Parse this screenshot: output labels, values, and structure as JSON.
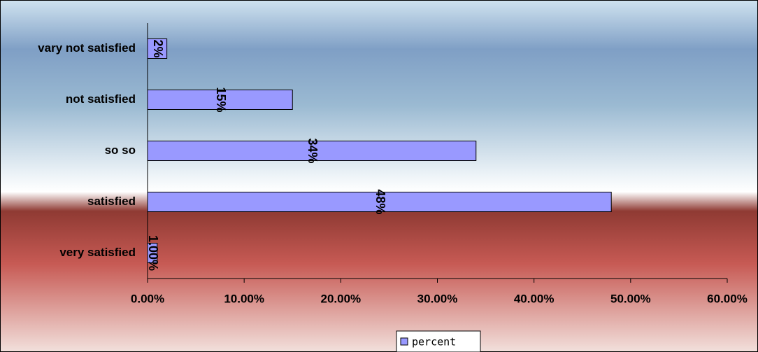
{
  "chart_data": {
    "type": "bar",
    "orientation": "horizontal",
    "categories": [
      "vary not satisfied",
      "not satisfied",
      "so so",
      "satisfied",
      "very satisfied"
    ],
    "series": [
      {
        "name": "percent",
        "color": "#9999ff",
        "values": [
          2,
          15,
          34,
          48,
          1
        ],
        "value_labels": [
          "2%",
          "15%",
          "34%",
          "48%",
          "1.00%"
        ]
      }
    ],
    "xlim": [
      0,
      60
    ],
    "xticks": [
      {
        "value": 0,
        "label": "0.00%"
      },
      {
        "value": 10,
        "label": "10.00%"
      },
      {
        "value": 20,
        "label": "20.00%"
      },
      {
        "value": 30,
        "label": "30.00%"
      },
      {
        "value": 40,
        "label": "40.00%"
      },
      {
        "value": 50,
        "label": "50.00%"
      },
      {
        "value": 60,
        "label": "60.00%"
      }
    ],
    "grid": false,
    "legend": "bottom"
  }
}
